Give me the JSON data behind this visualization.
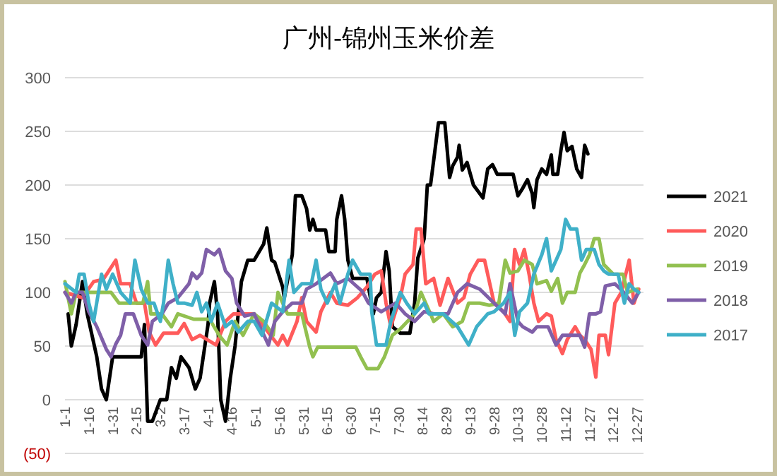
{
  "chart_data": {
    "type": "line",
    "title": "广州-锦州玉米价差",
    "xlim": [
      "--01-01",
      "--12-31"
    ],
    "xticks": [
      {
        "value": "--01-01",
        "label": "1-1"
      },
      {
        "value": "--01-16",
        "label": "1-16"
      },
      {
        "value": "--01-31",
        "label": "1-31"
      },
      {
        "value": "--02-15",
        "label": "2-15"
      },
      {
        "value": "--03-02",
        "label": "3-2"
      },
      {
        "value": "--03-17",
        "label": "3-17"
      },
      {
        "value": "--04-01",
        "label": "4-1"
      },
      {
        "value": "--04-16",
        "label": "4-16"
      },
      {
        "value": "--05-01",
        "label": "5-1"
      },
      {
        "value": "--05-16",
        "label": "5-16"
      },
      {
        "value": "--05-31",
        "label": "5-31"
      },
      {
        "value": "--06-15",
        "label": "6-15"
      },
      {
        "value": "--06-30",
        "label": "6-30"
      },
      {
        "value": "--07-15",
        "label": "7-15"
      },
      {
        "value": "--07-30",
        "label": "7-30"
      },
      {
        "value": "--08-14",
        "label": "8-14"
      },
      {
        "value": "--08-29",
        "label": "8-29"
      },
      {
        "value": "--09-13",
        "label": "9-13"
      },
      {
        "value": "--09-28",
        "label": "9-28"
      },
      {
        "value": "--10-13",
        "label": "10-13"
      },
      {
        "value": "--10-28",
        "label": "10-28"
      },
      {
        "value": "--11-12",
        "label": "11-12"
      },
      {
        "value": "--11-27",
        "label": "11-27"
      },
      {
        "value": "--12-12",
        "label": "12-12"
      },
      {
        "value": "--12-27",
        "label": "12-27"
      }
    ],
    "ylim": [
      -50,
      300
    ],
    "yticks": [
      {
        "value": -50,
        "label": "(50)"
      },
      0,
      50,
      100,
      150,
      200,
      250,
      300
    ],
    "grid": "y",
    "legend": "right",
    "marker": "none",
    "line_style": "solid",
    "series": [
      {
        "name": "2021",
        "color": "#000000",
        "x": [
          "--01-03",
          "--01-05",
          "--01-08",
          "--01-12",
          "--01-15",
          "--01-18",
          "--01-21",
          "--01-24",
          "--01-27",
          "--01-31",
          "--02-18",
          "--02-20",
          "--02-22",
          "--02-25",
          "--03-02",
          "--03-06",
          "--03-09",
          "--03-12",
          "--03-15",
          "--03-20",
          "--03-24",
          "--03-27",
          "--04-01",
          "--04-02",
          "--04-05",
          "--04-07",
          "--04-09",
          "--04-12",
          "--04-15",
          "--04-18",
          "--04-22",
          "--04-26",
          "--04-30",
          "--05-06",
          "--05-08",
          "--05-11",
          "--05-13",
          "--05-18",
          "--05-19",
          "--05-24",
          "--05-26",
          "--05-30",
          "--06-02",
          "--06-04",
          "--06-06",
          "--06-08",
          "--06-14",
          "--06-16",
          "--06-20",
          "--06-21",
          "--06-24",
          "--06-26",
          "--06-28",
          "--07-01",
          "--07-10",
          "--07-14",
          "--07-16",
          "--07-19",
          "--07-22",
          "--07-24",
          "--07-26",
          "--07-31",
          "--08-06",
          "--08-09",
          "--08-11",
          "--08-15",
          "--08-17",
          "--08-19",
          "--08-24",
          "--08-28",
          "--08-31",
          "--09-02",
          "--09-05",
          "--09-06",
          "--09-08",
          "--09-11",
          "--09-15",
          "--09-21",
          "--09-24",
          "--09-27",
          "--09-30",
          "--10-10",
          "--10-13",
          "--10-16",
          "--10-19",
          "--10-22",
          "--10-23",
          "--10-25",
          "--10-28",
          "--10-31",
          "--11-03",
          "--11-04",
          "--11-07",
          "--11-09",
          "--11-11",
          "--11-13",
          "--11-16",
          "--11-19",
          "--11-22",
          "--11-24",
          "--11-26"
        ],
        "values": [
          80,
          50,
          70,
          110,
          80,
          60,
          40,
          10,
          0,
          40,
          40,
          70,
          -20,
          -20,
          0,
          0,
          30,
          20,
          40,
          30,
          10,
          20,
          70,
          90,
          110,
          80,
          0,
          -20,
          20,
          50,
          110,
          130,
          130,
          145,
          160,
          130,
          128,
          105,
          95,
          135,
          190,
          190,
          178,
          158,
          168,
          158,
          158,
          138,
          138,
          168,
          190,
          168,
          130,
          113,
          113,
          80,
          95,
          100,
          138,
          120,
          68,
          62,
          62,
          90,
          132,
          150,
          200,
          200,
          258,
          258,
          207,
          218,
          226,
          237,
          214,
          221,
          200,
          188,
          215,
          219,
          210,
          210,
          190,
          197,
          205,
          192,
          179,
          205,
          215,
          210,
          228,
          210,
          210,
          232,
          249,
          232,
          236,
          215,
          207,
          237,
          229
        ]
      },
      {
        "name": "2020",
        "color": "#ff5b5b",
        "x": [
          "--01-01",
          "--01-12",
          "--01-19",
          "--01-25",
          "--02-02",
          "--02-05",
          "--02-11",
          "--02-15",
          "--02-20",
          "--02-23",
          "--02-27",
          "--03-04",
          "--03-13",
          "--03-17",
          "--03-22",
          "--03-27",
          "--04-06",
          "--04-12",
          "--04-17",
          "--04-30",
          "--05-15",
          "--05-18",
          "--05-21",
          "--05-27",
          "--05-30",
          "--06-02",
          "--06-08",
          "--06-11",
          "--06-17",
          "--06-21",
          "--06-28",
          "--07-04",
          "--07-10",
          "--07-15",
          "--07-19",
          "--07-22",
          "--07-25",
          "--07-28",
          "--07-31",
          "--08-03",
          "--08-08",
          "--08-10",
          "--08-13",
          "--08-16",
          "--08-21",
          "--08-25",
          "--08-30",
          "--09-05",
          "--09-09",
          "--09-13",
          "--09-18",
          "--09-22",
          "--09-28",
          "--10-04",
          "--10-08",
          "--10-11",
          "--10-14",
          "--10-17",
          "--10-20",
          "--10-23",
          "--10-26",
          "--10-31",
          "--11-03",
          "--11-06",
          "--11-10",
          "--11-13",
          "--11-18",
          "--11-21",
          "--11-24",
          "--11-28",
          "--12-01",
          "--12-03",
          "--12-07",
          "--12-09",
          "--12-13",
          "--12-17",
          "--12-22",
          "--12-25",
          "--12-28"
        ],
        "values": [
          100,
          95,
          110,
          112,
          130,
          108,
          108,
          90,
          90,
          63,
          51,
          62,
          62,
          71,
          56,
          60,
          51,
          73,
          80,
          80,
          51,
          60,
          51,
          73,
          95,
          73,
          63,
          82,
          100,
          90,
          88,
          95,
          105,
          117,
          120,
          90,
          68,
          82,
          95,
          117,
          126,
          159,
          159,
          108,
          113,
          88,
          113,
          90,
          95,
          117,
          130,
          130,
          90,
          82,
          73,
          140,
          126,
          140,
          117,
          90,
          73,
          80,
          78,
          56,
          43,
          56,
          68,
          60,
          56,
          47,
          21,
          60,
          60,
          42,
          90,
          100,
          130,
          90,
          103
        ]
      },
      {
        "name": "2019",
        "color": "#92c050",
        "x": [
          "--01-01",
          "--01-05",
          "--01-08",
          "--01-30",
          "--02-04",
          "--02-19",
          "--02-22",
          "--02-24",
          "--03-03",
          "--03-09",
          "--03-13",
          "--03-23",
          "--04-02",
          "--04-08",
          "--04-13",
          "--04-18",
          "--04-23",
          "--04-30",
          "--05-06",
          "--05-12",
          "--05-15",
          "--05-21",
          "--05-30",
          "--06-04",
          "--06-06",
          "--06-09",
          "--06-14",
          "--07-03",
          "--07-06",
          "--07-10",
          "--07-17",
          "--07-21",
          "--07-26",
          "--07-31",
          "--08-09",
          "--08-13",
          "--08-21",
          "--08-27",
          "--09-02",
          "--09-08",
          "--09-12",
          "--09-19",
          "--09-25",
          "--10-01",
          "--10-05",
          "--10-08",
          "--10-13",
          "--10-17",
          "--10-22",
          "--10-25",
          "--10-31",
          "--11-03",
          "--11-07",
          "--11-10",
          "--11-13",
          "--11-18",
          "--11-21",
          "--11-24",
          "--11-27",
          "--11-30",
          "--12-03",
          "--12-06",
          "--12-12",
          "--12-18",
          "--12-21",
          "--12-27"
        ],
        "values": [
          110,
          80,
          100,
          100,
          90,
          90,
          110,
          80,
          80,
          68,
          80,
          75,
          75,
          60,
          51,
          73,
          60,
          80,
          73,
          60,
          100,
          80,
          80,
          49,
          40,
          49,
          49,
          49,
          40,
          29,
          29,
          40,
          60,
          66,
          80,
          100,
          73,
          80,
          68,
          73,
          90,
          90,
          88,
          90,
          130,
          118,
          120,
          130,
          126,
          108,
          111,
          101,
          113,
          90,
          100,
          100,
          118,
          126,
          135,
          150,
          150,
          126,
          117,
          117,
          100,
          103
        ]
      },
      {
        "name": "2018",
        "color": "#7f5fa8",
        "x": [
          "--01-01",
          "--01-05",
          "--01-08",
          "--01-12",
          "--01-16",
          "--01-21",
          "--01-27",
          "--01-30",
          "--02-02",
          "--02-05",
          "--02-08",
          "--02-13",
          "--02-18",
          "--02-22",
          "--02-25",
          "--03-03",
          "--03-07",
          "--03-13",
          "--03-20",
          "--03-22",
          "--03-25",
          "--03-28",
          "--03-31",
          "--04-05",
          "--04-08",
          "--04-12",
          "--04-16",
          "--04-19",
          "--04-24",
          "--04-30",
          "--05-09",
          "--05-13",
          "--05-18",
          "--05-24",
          "--05-30",
          "--06-02",
          "--06-08",
          "--06-17",
          "--06-21",
          "--06-28",
          "--07-07",
          "--07-11",
          "--07-19",
          "--07-28",
          "--08-03",
          "--08-09",
          "--08-15",
          "--08-21",
          "--08-30",
          "--09-05",
          "--09-11",
          "--09-19",
          "--09-28",
          "--10-05",
          "--10-08",
          "--10-13",
          "--10-16",
          "--10-22",
          "--10-25",
          "--11-01",
          "--11-06",
          "--11-10",
          "--11-21",
          "--11-24",
          "--11-27",
          "--12-01",
          "--12-04",
          "--12-07",
          "--12-13",
          "--12-18",
          "--12-24",
          "--12-28"
        ],
        "values": [
          100,
          90,
          100,
          100,
          82,
          68,
          47,
          40,
          52,
          60,
          80,
          80,
          60,
          51,
          73,
          80,
          90,
          95,
          108,
          118,
          113,
          118,
          140,
          135,
          140,
          120,
          113,
          90,
          78,
          80,
          51,
          73,
          82,
          90,
          90,
          103,
          108,
          118,
          108,
          113,
          101,
          90,
          82,
          90,
          80,
          73,
          82,
          80,
          80,
          100,
          108,
          103,
          90,
          80,
          108,
          73,
          68,
          63,
          68,
          68,
          51,
          60,
          60,
          49,
          80,
          80,
          82,
          106,
          108,
          101,
          90,
          100
        ]
      },
      {
        "name": "2017",
        "color": "#3fb0c8",
        "x": [
          "--01-01",
          "--01-08",
          "--01-10",
          "--01-13",
          "--01-16",
          "--01-19",
          "--01-24",
          "--01-27",
          "--01-31",
          "--02-05",
          "--02-11",
          "--02-14",
          "--02-18",
          "--02-22",
          "--02-26",
          "--03-02",
          "--03-04",
          "--03-07",
          "--03-10",
          "--03-13",
          "--03-17",
          "--03-22",
          "--03-25",
          "--03-28",
          "--03-31",
          "--04-03",
          "--04-07",
          "--04-12",
          "--04-16",
          "--04-20",
          "--04-26",
          "--04-30",
          "--05-05",
          "--05-11",
          "--05-18",
          "--05-22",
          "--05-25",
          "--05-30",
          "--06-05",
          "--06-08",
          "--06-11",
          "--06-15",
          "--06-20",
          "--06-23",
          "--06-28",
          "--07-01",
          "--07-06",
          "--07-12",
          "--07-13",
          "--07-16",
          "--07-22",
          "--07-25",
          "--07-31",
          "--08-04",
          "--08-09",
          "--08-15",
          "--08-18",
          "--08-27",
          "--09-05",
          "--09-12",
          "--09-17",
          "--09-24",
          "--09-28",
          "--10-04",
          "--10-08",
          "--10-11",
          "--10-14",
          "--10-19",
          "--10-23",
          "--10-28",
          "--10-31",
          "--11-03",
          "--11-06",
          "--11-09",
          "--11-12",
          "--11-15",
          "--11-19",
          "--11-22",
          "--11-25",
          "--11-30",
          "--12-03",
          "--12-06",
          "--12-09",
          "--12-15",
          "--12-19",
          "--12-22",
          "--12-25",
          "--12-28"
        ],
        "values": [
          108,
          100,
          117,
          117,
          90,
          73,
          117,
          103,
          117,
          100,
          90,
          130,
          103,
          90,
          90,
          73,
          90,
          130,
          108,
          90,
          90,
          88,
          100,
          82,
          90,
          73,
          90,
          68,
          73,
          63,
          73,
          73,
          60,
          90,
          82,
          130,
          100,
          108,
          108,
          130,
          103,
          90,
          108,
          90,
          117,
          130,
          117,
          117,
          82,
          51,
          51,
          73,
          100,
          90,
          80,
          90,
          80,
          80,
          68,
          51,
          68,
          80,
          82,
          90,
          100,
          60,
          82,
          90,
          117,
          135,
          150,
          120,
          130,
          140,
          168,
          159,
          159,
          130,
          140,
          140,
          126,
          120,
          117,
          117,
          90,
          108,
          103,
          100
        ]
      }
    ]
  }
}
